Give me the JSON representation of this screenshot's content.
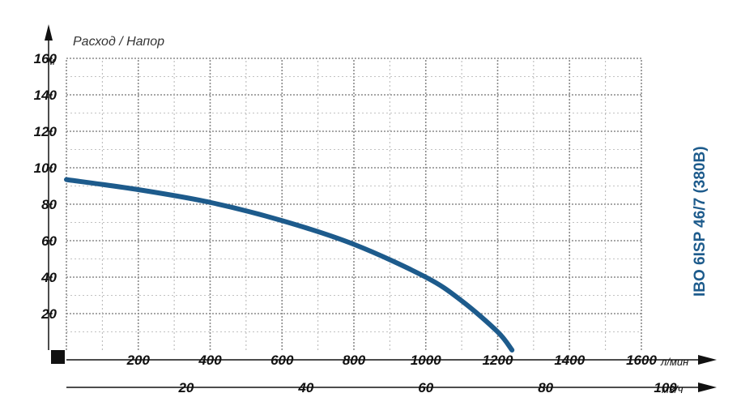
{
  "chart_data": {
    "type": "line",
    "title": "",
    "ylabel": "Расход / Напор",
    "y_unit": "м",
    "x_unit": "л/мин",
    "x2_unit": "м3/ч",
    "model_label": "IBO 6ISP 46/7 (380В)",
    "ylim": [
      0,
      160
    ],
    "xlim": [
      0,
      1600
    ],
    "x2lim": [
      0,
      96
    ],
    "y_ticks": [
      "20",
      "40",
      "60",
      "80",
      "100",
      "120",
      "140",
      "160"
    ],
    "x_ticks": [
      "200",
      "400",
      "600",
      "800",
      "1000",
      "1200",
      "1400",
      "1600"
    ],
    "x2_ticks": [
      "20",
      "40",
      "60",
      "80",
      "100"
    ],
    "grid": true,
    "series": [
      {
        "name": "",
        "color": "#1d5b8c",
        "x": [
          0,
          200,
          400,
          600,
          800,
          1000,
          1100,
          1200,
          1240
        ],
        "y": [
          93.5,
          88,
          81,
          71,
          58,
          40,
          27,
          10,
          0
        ]
      }
    ]
  }
}
